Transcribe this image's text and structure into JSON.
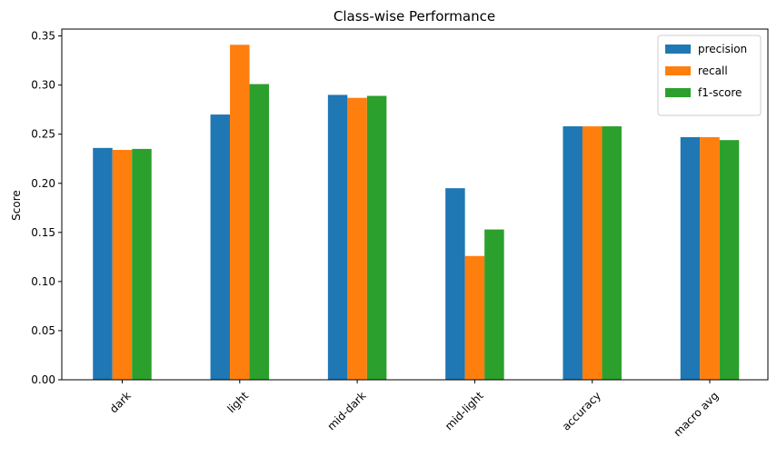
{
  "chart_data": {
    "type": "bar",
    "title": "Class-wise Performance",
    "xlabel": "",
    "ylabel": "Score",
    "categories": [
      "dark",
      "light",
      "mid-dark",
      "mid-light",
      "accuracy",
      "macro avg"
    ],
    "series": [
      {
        "name": "precision",
        "color": "#1f77b4",
        "values": [
          0.236,
          0.27,
          0.29,
          0.195,
          0.258,
          0.247
        ]
      },
      {
        "name": "recall",
        "color": "#ff7f0e",
        "values": [
          0.234,
          0.341,
          0.287,
          0.126,
          0.258,
          0.247
        ]
      },
      {
        "name": "f1-score",
        "color": "#2ca02c",
        "values": [
          0.235,
          0.301,
          0.289,
          0.153,
          0.258,
          0.244
        ]
      }
    ],
    "ylim": [
      0,
      0.357
    ],
    "yticks": [
      "0.00",
      "0.05",
      "0.10",
      "0.15",
      "0.20",
      "0.25",
      "0.30",
      "0.35"
    ],
    "grid": false,
    "legend_position": "top-right"
  }
}
